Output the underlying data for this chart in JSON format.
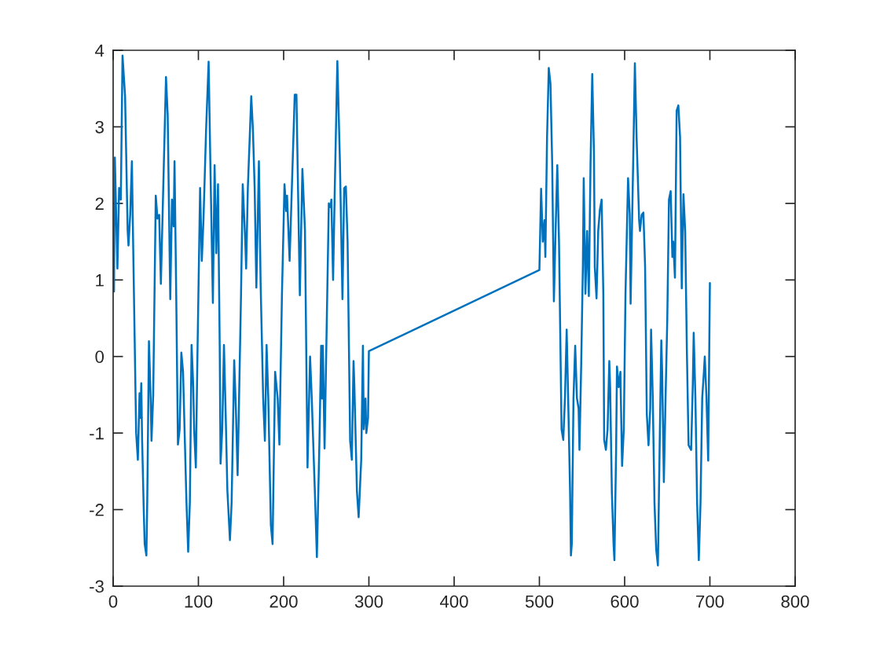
{
  "chart_data": {
    "type": "line",
    "color": "#0072bd",
    "x": [
      1,
      2,
      5,
      7,
      9,
      11,
      14,
      17,
      18,
      20,
      22,
      23,
      27,
      29,
      31,
      32,
      33,
      34,
      36,
      37,
      39,
      40,
      42,
      44,
      45,
      47,
      50,
      52,
      54,
      56,
      58,
      62,
      64,
      67,
      69,
      71,
      72,
      74,
      76,
      78,
      80,
      82,
      86,
      88,
      90,
      92,
      94,
      95,
      97,
      99,
      102,
      104,
      106,
      109,
      112,
      114,
      117,
      119,
      121,
      123,
      125,
      126,
      128,
      130,
      132,
      134,
      137,
      139,
      142,
      144,
      146,
      150,
      152,
      155,
      156,
      158,
      162,
      164,
      166,
      168,
      171,
      173,
      176,
      178,
      180,
      182,
      185,
      187,
      190,
      193,
      195,
      198,
      201,
      203,
      204,
      207,
      213,
      215,
      219,
      222,
      225,
      228,
      231,
      233,
      237,
      239,
      242,
      244,
      245,
      246,
      248,
      253,
      255,
      256,
      258,
      260,
      263,
      266,
      269,
      271,
      273,
      275,
      278,
      280,
      282,
      283,
      286,
      288,
      291,
      293,
      294,
      296,
      297,
      299,
      300,
      500,
      502,
      504,
      506,
      507,
      509,
      511,
      513,
      515,
      517,
      519,
      521,
      523,
      526,
      528,
      530,
      532,
      534,
      536,
      537,
      538,
      540,
      542,
      544,
      546,
      547,
      549,
      551,
      552,
      554,
      556,
      558,
      560,
      562,
      564,
      565,
      567,
      569,
      571,
      573,
      575,
      576,
      578,
      580,
      582,
      583,
      585,
      587,
      588,
      590,
      591,
      593,
      595,
      597,
      599,
      601,
      604,
      606,
      607,
      610,
      612,
      614,
      617,
      618,
      620,
      622,
      624,
      626,
      628,
      630,
      631,
      633,
      635,
      637,
      639,
      641,
      643,
      644,
      646,
      648,
      650,
      652,
      654,
      656,
      657,
      659,
      661,
      663,
      665,
      667,
      669,
      671,
      673,
      675,
      678,
      680,
      681,
      683,
      685,
      687,
      689,
      691,
      693,
      694,
      696,
      698,
      700
    ],
    "values": [
      0.85,
      2.6,
      1.15,
      2.2,
      2.05,
      3.93,
      3.4,
      1.65,
      1.45,
      1.85,
      2.55,
      1.8,
      -1.0,
      -1.35,
      -0.48,
      -0.8,
      -0.35,
      -1.1,
      -2.05,
      -2.45,
      -2.6,
      -1.9,
      0.2,
      -0.55,
      -1.1,
      -0.5,
      2.1,
      1.8,
      1.85,
      0.95,
      1.85,
      3.65,
      3.15,
      0.75,
      2.05,
      1.7,
      2.55,
      0.8,
      -1.15,
      -0.95,
      0.05,
      -0.2,
      -1.9,
      -2.55,
      -1.9,
      0.15,
      -0.4,
      -0.95,
      -1.45,
      0.1,
      2.2,
      1.25,
      1.8,
      2.95,
      3.85,
      2.55,
      0.7,
      2.5,
      1.35,
      2.25,
      0.15,
      -1.4,
      -0.95,
      0.15,
      -0.75,
      -1.75,
      -2.4,
      -1.9,
      -0.05,
      -0.7,
      -1.55,
      0.8,
      2.25,
      1.5,
      1.15,
      2.2,
      3.4,
      2.95,
      2.2,
      0.9,
      2.55,
      0.95,
      -0.55,
      -1.1,
      0.15,
      -0.55,
      -2.2,
      -2.45,
      -0.2,
      -0.55,
      -1.15,
      0.8,
      2.25,
      1.9,
      2.1,
      1.25,
      3.42,
      3.42,
      0.8,
      2.45,
      1.65,
      -1.45,
      0.0,
      -0.55,
      -1.9,
      -2.62,
      -1.1,
      0.14,
      -0.55,
      0.14,
      -1.2,
      2.0,
      1.95,
      2.05,
      1.0,
      2.2,
      3.86,
      2.55,
      0.75,
      2.2,
      2.22,
      1.5,
      -1.1,
      -1.35,
      -0.06,
      -0.4,
      -1.77,
      -2.1,
      -1.35,
      0.14,
      -0.95,
      -0.55,
      -1.0,
      -0.8,
      0.07,
      1.13,
      2.19,
      1.5,
      1.78,
      1.3,
      2.87,
      3.77,
      3.56,
      2.53,
      0.72,
      1.64,
      2.5,
      1.5,
      -0.95,
      -1.09,
      -0.54,
      0.35,
      -0.68,
      -1.77,
      -2.6,
      -2.45,
      -0.54,
      0.14,
      -0.54,
      -0.68,
      -1.22,
      -0.13,
      1.17,
      2.33,
      0.82,
      1.64,
      0.79,
      2.53,
      3.69,
      2.67,
      1.17,
      0.76,
      1.64,
      1.92,
      2.05,
      0.82,
      -1.09,
      -1.22,
      -0.95,
      -0.06,
      -0.4,
      -1.77,
      -2.45,
      -2.66,
      -1.22,
      -0.13,
      -0.4,
      -0.2,
      -1.43,
      -0.95,
      0.82,
      2.33,
      1.85,
      0.69,
      2.53,
      3.83,
      2.87,
      1.78,
      1.64,
      1.85,
      1.88,
      1.17,
      -0.75,
      -1.16,
      -0.68,
      0.35,
      -0.54,
      -1.91,
      -2.52,
      -2.73,
      -1.22,
      0.21,
      -0.2,
      -1.64,
      -0.54,
      0.48,
      2.05,
      2.16,
      1.3,
      1.5,
      1.03,
      3.21,
      3.28,
      2.87,
      0.89,
      2.12,
      1.64,
      0.07,
      -1.16,
      -1.22,
      -0.34,
      0.31,
      -0.54,
      -1.91,
      -2.66,
      -1.91,
      -0.54,
      -0.2,
      0.0,
      -0.54,
      -1.36,
      0.96
    ],
    "xlim": [
      0,
      800
    ],
    "xticks": [
      0,
      100,
      200,
      300,
      400,
      500,
      600,
      700,
      800
    ],
    "ylim": [
      -3,
      4
    ],
    "yticks": [
      -3,
      -2,
      -1,
      0,
      1,
      2,
      3,
      4
    ]
  }
}
